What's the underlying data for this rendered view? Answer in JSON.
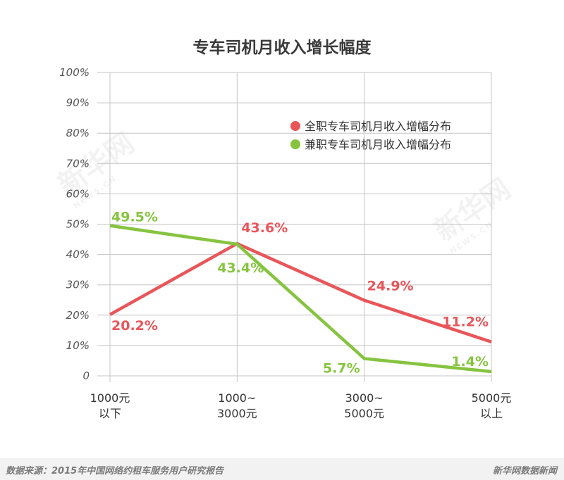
{
  "chart_data": {
    "type": "line",
    "title": "专车司机月收入增长幅度",
    "categories": [
      [
        "1000元",
        "以下"
      ],
      [
        "1000~",
        "3000元"
      ],
      [
        "3000~",
        "5000元"
      ],
      [
        "5000元",
        "以上"
      ]
    ],
    "ylim": [
      0,
      100
    ],
    "yticks": [
      "0",
      "10%",
      "20%",
      "30%",
      "40%",
      "50%",
      "60%",
      "70%",
      "80%",
      "90%",
      "100%"
    ],
    "grid": true,
    "legend_position": "top-right",
    "series": [
      {
        "name": "全职专车司机月收入增幅分布",
        "color": "#e8565a",
        "values": [
          20.2,
          43.6,
          24.9,
          11.2
        ],
        "labels": [
          "20.2%",
          "43.6%",
          "24.9%",
          "11.2%"
        ]
      },
      {
        "name": "兼职专车司机月收入增幅分布",
        "color": "#86c440",
        "values": [
          49.5,
          43.4,
          5.7,
          1.4
        ],
        "labels": [
          "49.5%",
          "43.4%",
          "5.7%",
          "1.4%"
        ]
      }
    ]
  },
  "footer": {
    "source": "数据来源：2015年中国网络约租车服务用户研究报告",
    "brand": "新华网数据新闻"
  },
  "watermark": {
    "main": "新华网",
    "sub": "NEWS.CN"
  }
}
